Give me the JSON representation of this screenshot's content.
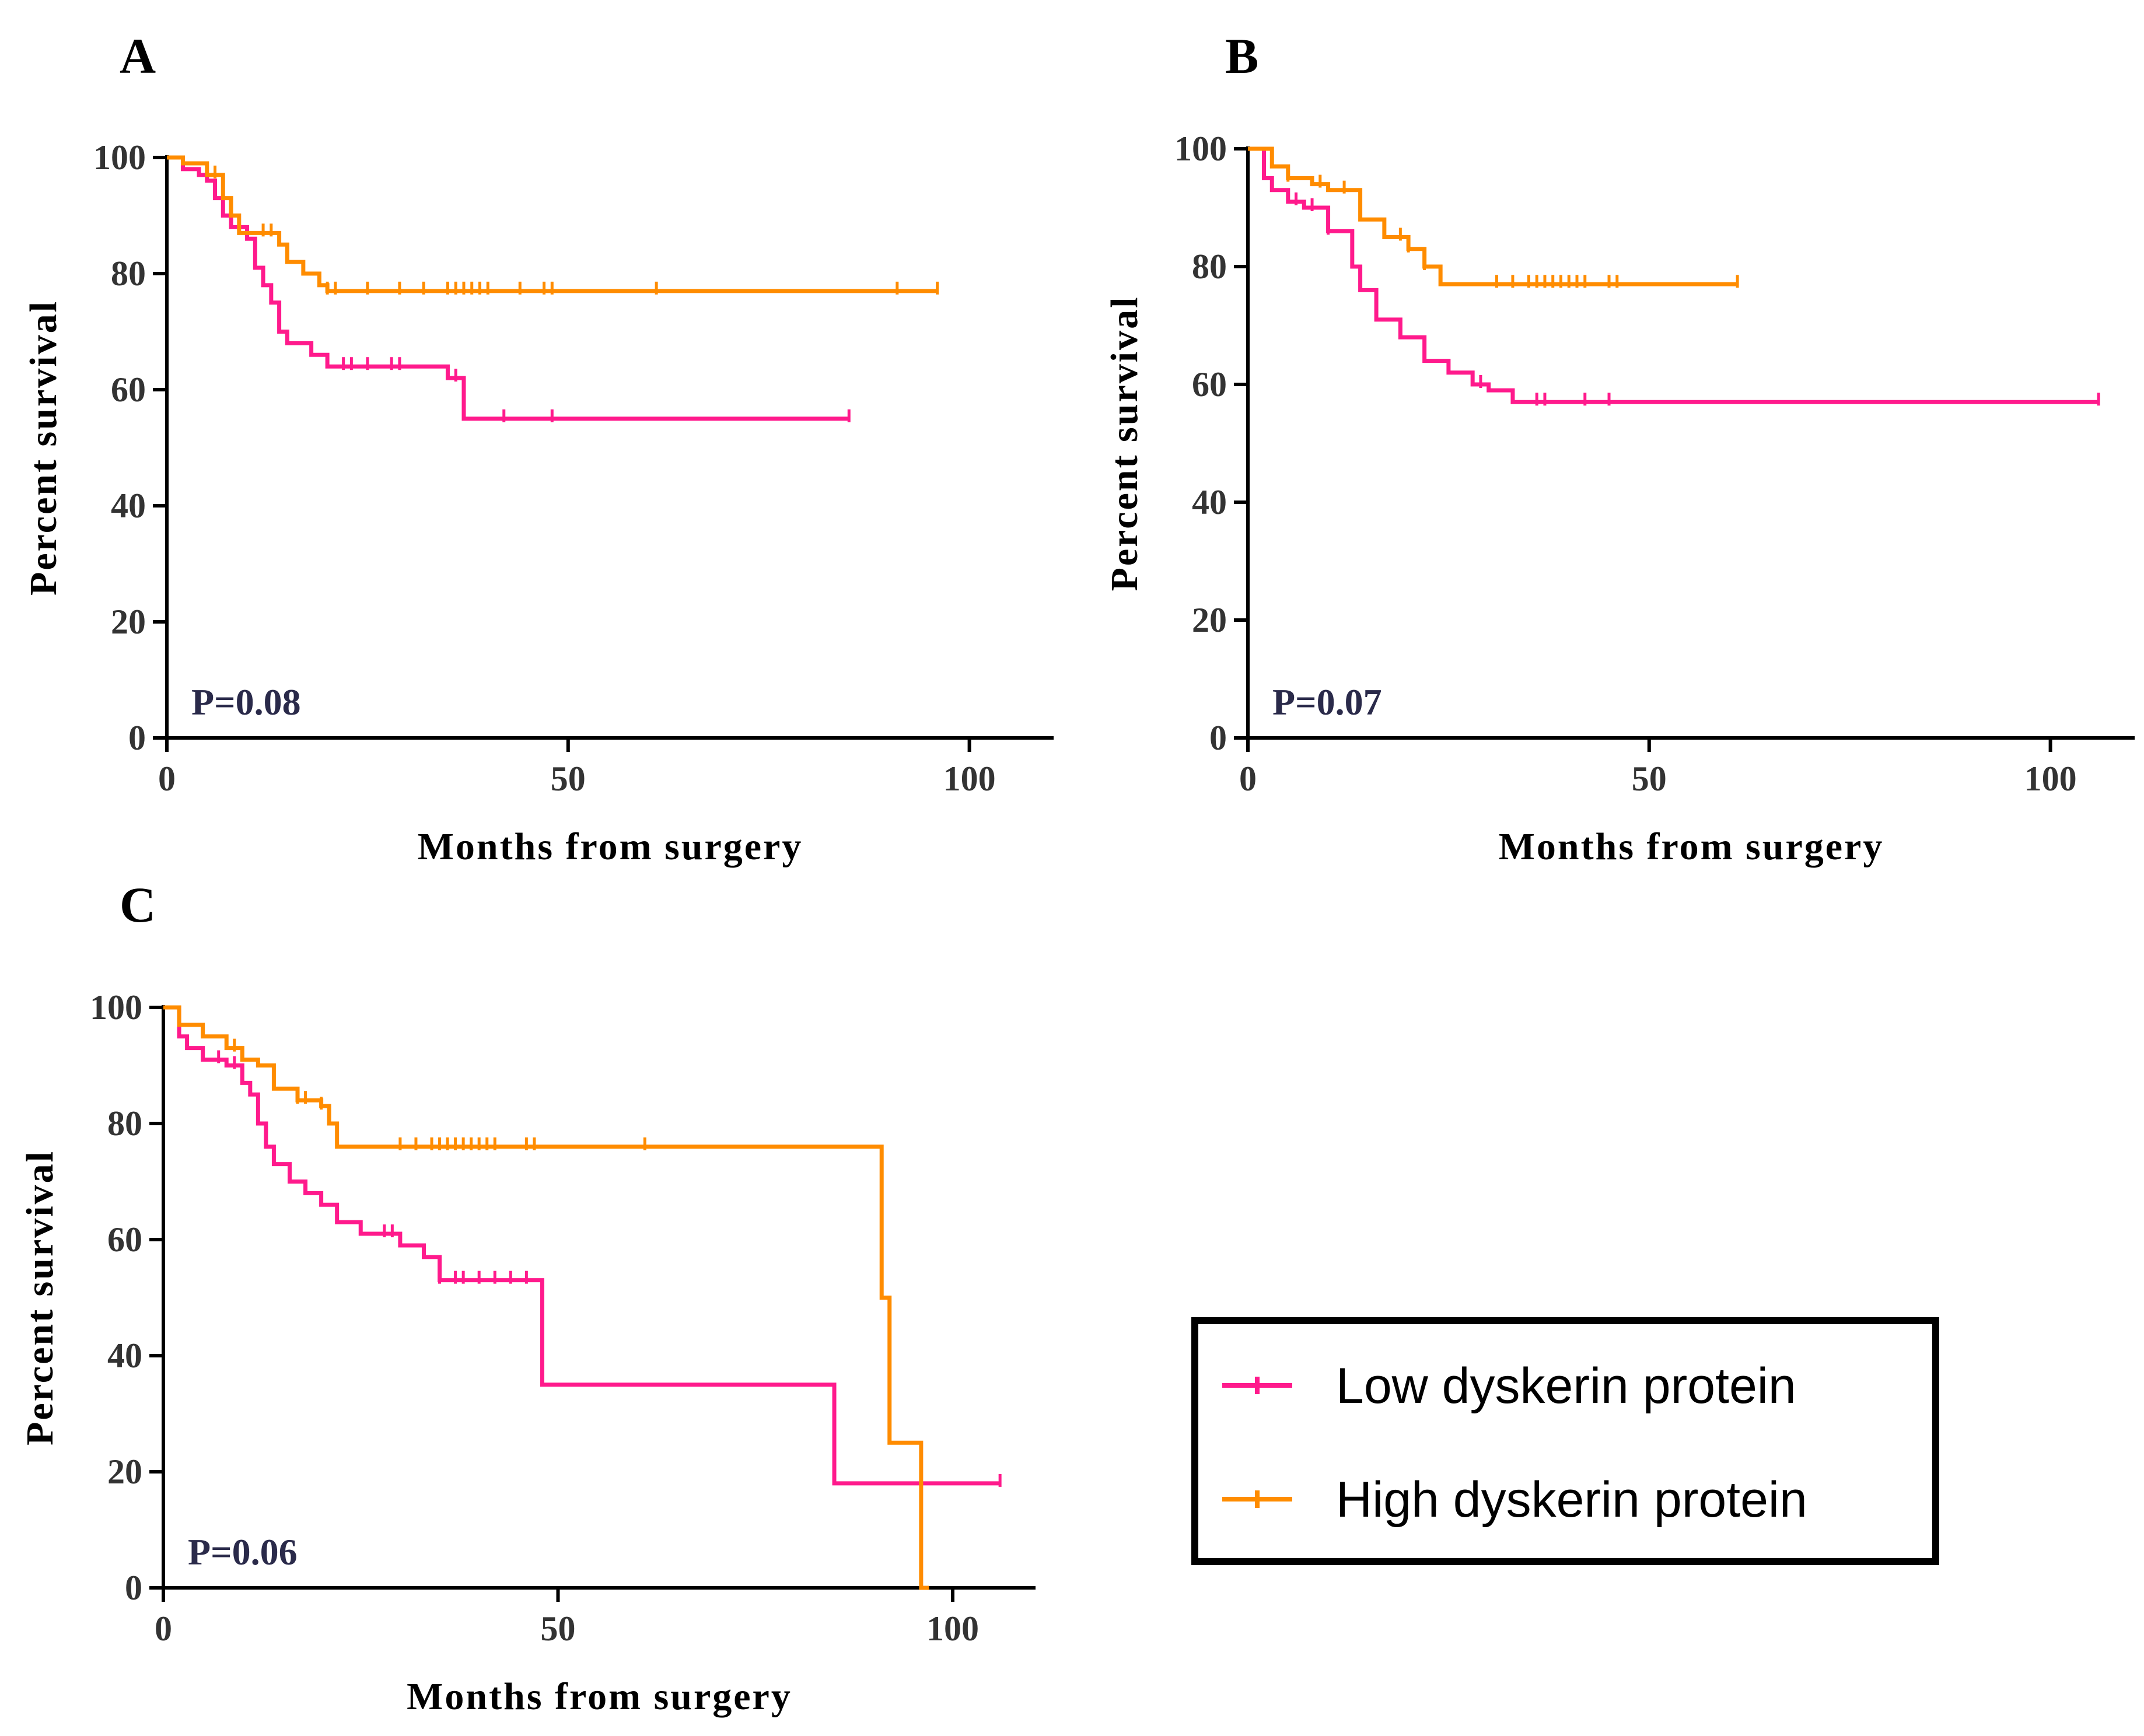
{
  "chart_data": [
    {
      "panel": "A",
      "type": "line",
      "xlabel": "Months from surgery",
      "ylabel": "Percent survival",
      "xlim": [
        0,
        110
      ],
      "ylim": [
        0,
        100
      ],
      "xticks": [
        "0",
        "50",
        "100"
      ],
      "yticks": [
        "0",
        "20",
        "40",
        "60",
        "80",
        "100"
      ],
      "annotation": "P=0.08",
      "series": [
        {
          "name": "Low dyskerin protein",
          "x": [
            0,
            2,
            4,
            5,
            6,
            7,
            8,
            10,
            11,
            12,
            13,
            14,
            15,
            18,
            20,
            28,
            35,
            37,
            40,
            50,
            85
          ],
          "y": [
            100,
            98,
            97,
            96,
            93,
            90,
            88,
            86,
            81,
            78,
            75,
            70,
            68,
            66,
            64,
            64,
            62,
            55,
            55,
            55,
            55
          ],
          "censor_x": [
            22,
            23,
            25,
            28,
            29,
            36,
            42,
            48,
            85
          ]
        },
        {
          "name": "High dyskerin protein",
          "x": [
            0,
            2,
            5,
            7,
            8,
            9,
            14,
            15,
            17,
            19,
            20,
            96
          ],
          "y": [
            100,
            99,
            97,
            93,
            90,
            87,
            85,
            82,
            80,
            78,
            77,
            77
          ],
          "censor_x": [
            6,
            12,
            13,
            20,
            21,
            25,
            29,
            32,
            35,
            36,
            37,
            38,
            39,
            40,
            44,
            47,
            48,
            61,
            91,
            96
          ]
        }
      ]
    },
    {
      "panel": "B",
      "type": "line",
      "xlabel": "Months from surgery",
      "ylabel": "Percent survival",
      "xlim": [
        0,
        110
      ],
      "ylim": [
        0,
        100
      ],
      "xticks": [
        "0",
        "50",
        "100"
      ],
      "yticks": [
        "0",
        "20",
        "40",
        "60",
        "80",
        "100"
      ],
      "annotation": "P=0.07",
      "series": [
        {
          "name": "Low dyskerin protein",
          "x": [
            0,
            2,
            3,
            5,
            7,
            10,
            13,
            14,
            16,
            19,
            22,
            25,
            28,
            30,
            33,
            106
          ],
          "y": [
            100,
            95,
            93,
            91,
            90,
            86,
            80,
            76,
            71,
            68,
            64,
            62,
            60,
            59,
            57,
            57
          ],
          "censor_x": [
            6,
            8,
            10,
            29,
            36,
            37,
            42,
            45,
            106
          ]
        },
        {
          "name": "High dyskerin protein",
          "x": [
            0,
            3,
            5,
            8,
            10,
            14,
            17,
            20,
            22,
            24,
            61
          ],
          "y": [
            100,
            97,
            95,
            94,
            93,
            88,
            85,
            83,
            80,
            77,
            77
          ],
          "censor_x": [
            5,
            9,
            12,
            19,
            20,
            22,
            31,
            33,
            35,
            36,
            37,
            38,
            39,
            40,
            41,
            42,
            45,
            46,
            61
          ]
        }
      ]
    },
    {
      "panel": "C",
      "type": "line",
      "xlabel": "Months from surgery",
      "ylabel": "Percent survival",
      "xlim": [
        0,
        110
      ],
      "ylim": [
        0,
        100
      ],
      "xticks": [
        "0",
        "50",
        "100"
      ],
      "yticks": [
        "0",
        "20",
        "40",
        "60",
        "80",
        "100"
      ],
      "annotation": "P=0.06",
      "series": [
        {
          "name": "Low dyskerin protein",
          "x": [
            0,
            2,
            3,
            5,
            8,
            10,
            11,
            12,
            13,
            14,
            16,
            18,
            20,
            22,
            25,
            30,
            33,
            35,
            48,
            85,
            106
          ],
          "y": [
            100,
            95,
            93,
            91,
            90,
            87,
            85,
            80,
            76,
            73,
            70,
            68,
            66,
            63,
            61,
            59,
            57,
            53,
            35,
            18,
            18
          ],
          "censor_x": [
            7,
            9,
            28,
            29,
            35,
            37,
            38,
            40,
            42,
            44,
            46,
            106
          ]
        },
        {
          "name": "High dyskerin protein",
          "x": [
            0,
            2,
            5,
            8,
            10,
            12,
            14,
            17,
            20,
            21,
            22,
            91,
            92,
            96,
            97
          ],
          "y": [
            100,
            97,
            95,
            93,
            91,
            90,
            86,
            84,
            83,
            80,
            76,
            50,
            25,
            0,
            0
          ],
          "hold_then_drop": true,
          "censor_x": [
            9,
            17,
            18,
            20,
            30,
            32,
            34,
            35,
            36,
            37,
            38,
            39,
            40,
            41,
            42,
            46,
            47,
            61
          ]
        }
      ]
    }
  ],
  "legend": {
    "items": [
      {
        "label": "Low dyskerin protein",
        "color": "#ff1a8c"
      },
      {
        "label": "High dyskerin protein",
        "color": "#ff8c00"
      }
    ]
  },
  "colors": {
    "low": "#ff1a8c",
    "high": "#ff8c00"
  }
}
